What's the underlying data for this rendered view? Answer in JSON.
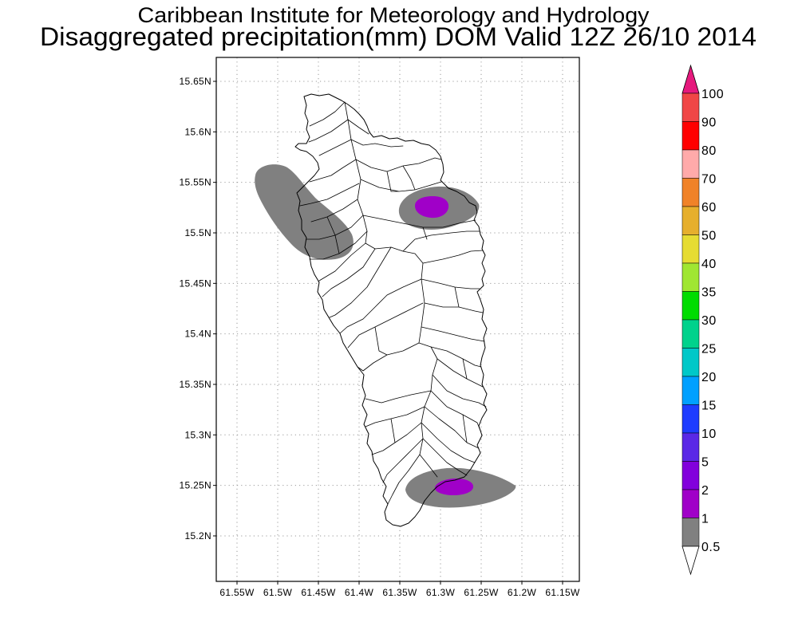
{
  "title": {
    "line1": "Caribbean Institute for Meteorology and Hydrology",
    "line2": "Disaggregated precipitation(mm) DOM Valid 12Z 26/10 2014"
  },
  "map": {
    "lat_ticks": [
      "15.65N",
      "15.6N",
      "15.55N",
      "15.5N",
      "15.45N",
      "15.4N",
      "15.35N",
      "15.3N",
      "15.25N",
      "15.2N"
    ],
    "lon_ticks": [
      "61.55W",
      "61.5W",
      "61.45W",
      "61.4W",
      "61.35W",
      "61.3W",
      "61.25W",
      "61.2W",
      "61.15W"
    ],
    "grid": true
  },
  "colorbar": {
    "placement": "right",
    "orientation": "vertical",
    "levels": [
      "100",
      "90",
      "80",
      "70",
      "60",
      "50",
      "40",
      "35",
      "30",
      "25",
      "20",
      "15",
      "10",
      "5",
      "2",
      "1",
      "0.5"
    ],
    "colors": [
      "#e6197d",
      "#f04646",
      "#ff0000",
      "#ffaaaa",
      "#f08228",
      "#e6af2d",
      "#e6dc32",
      "#a0e632",
      "#00dc00",
      "#00d28c",
      "#00c8c8",
      "#00a0ff",
      "#1e3cff",
      "#5a28e6",
      "#8200dc",
      "#a000c8",
      "#808080",
      "#ffffff"
    ]
  }
}
